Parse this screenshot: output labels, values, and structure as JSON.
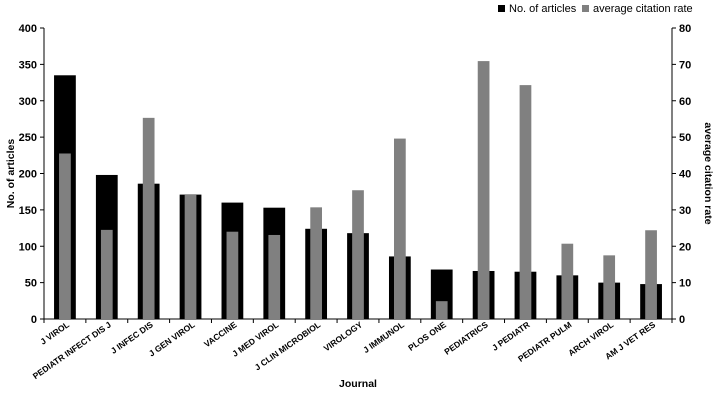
{
  "chart_data": {
    "type": "bar",
    "title": "",
    "xlabel": "Journal",
    "ylabel": "No. of articles",
    "y2label": "average citation rate",
    "ylim": [
      0,
      400
    ],
    "y2lim": [
      0,
      80
    ],
    "yticks": [
      0,
      50,
      100,
      150,
      200,
      250,
      300,
      350,
      400
    ],
    "y2ticks": [
      0,
      10,
      20,
      30,
      40,
      50,
      60,
      70,
      80
    ],
    "legend_position": "top-right",
    "grid": false,
    "categories": [
      "J VIROL",
      "PEDIATR INFECT DIS J",
      "J INFEC DIS",
      "J GEN VIROL",
      "VACCINE",
      "J MED VIROL",
      "J CLIN MICROBIOL",
      "VIROLOGY",
      "J IMMUNOL",
      "PLOS ONE",
      "PEDIATRICS",
      "J PEDIATR",
      "PEDIATR PULM",
      "ARCH VIROL",
      "AM J VET RES"
    ],
    "series": [
      {
        "name": "No. of articles",
        "axis": "left",
        "color": "#000000",
        "values": [
          335,
          198,
          186,
          171,
          160,
          153,
          124,
          118,
          86,
          68,
          66,
          65,
          60,
          50,
          48
        ]
      },
      {
        "name": "average citation rate",
        "axis": "right",
        "color": "#808080",
        "values": [
          45.5,
          24.5,
          55.3,
          34.3,
          24.0,
          23.1,
          30.7,
          35.4,
          49.6,
          4.9,
          70.9,
          64.3,
          20.7,
          17.5,
          24.4
        ]
      }
    ]
  }
}
